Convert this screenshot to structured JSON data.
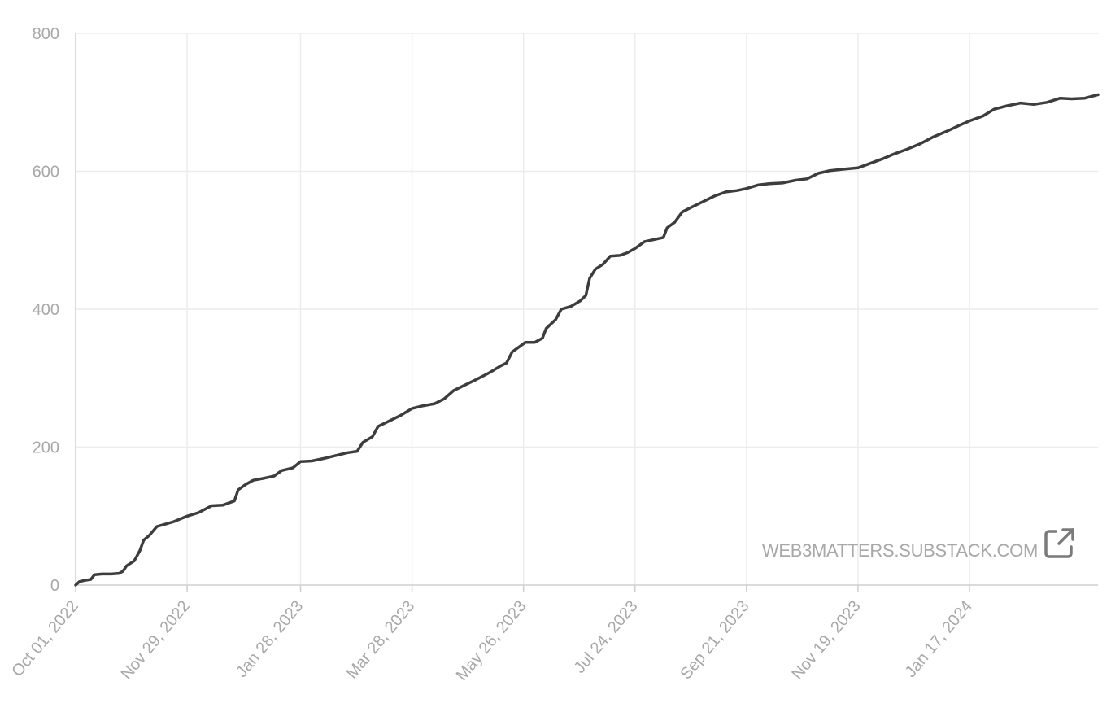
{
  "chart_data": {
    "type": "line",
    "title": "",
    "xlabel": "",
    "ylabel": "",
    "ylim": [
      0,
      800
    ],
    "y_ticks": [
      0,
      200,
      400,
      600,
      800
    ],
    "x_range": [
      "2022-10-01",
      "2024-03-25"
    ],
    "x_tick_dates": [
      "2022-10-01",
      "2022-11-29",
      "2023-01-28",
      "2023-03-28",
      "2023-05-26",
      "2023-07-24",
      "2023-09-21",
      "2023-11-19",
      "2024-01-17"
    ],
    "x_tick_labels": [
      "Oct 01, 2022",
      "Nov 29, 2022",
      "Jan 28, 2023",
      "Mar 28, 2023",
      "May 26, 2023",
      "Jul 24, 2023",
      "Sep 21, 2023",
      "Nov 19, 2023",
      "Jan 17, 2024"
    ],
    "grid": true,
    "series": [
      {
        "color": "#3d3d3d",
        "points": [
          [
            "2022-10-01",
            0
          ],
          [
            "2022-10-03",
            5
          ],
          [
            "2022-10-06",
            7
          ],
          [
            "2022-10-09",
            8
          ],
          [
            "2022-10-11",
            15
          ],
          [
            "2022-10-15",
            16
          ],
          [
            "2022-10-20",
            16
          ],
          [
            "2022-10-24",
            17
          ],
          [
            "2022-10-26",
            20
          ],
          [
            "2022-10-28",
            28
          ],
          [
            "2022-11-01",
            35
          ],
          [
            "2022-11-04",
            50
          ],
          [
            "2022-11-06",
            65
          ],
          [
            "2022-11-09",
            72
          ],
          [
            "2022-11-13",
            85
          ],
          [
            "2022-11-17",
            88
          ],
          [
            "2022-11-22",
            92
          ],
          [
            "2022-11-29",
            100
          ],
          [
            "2022-12-05",
            105
          ],
          [
            "2022-12-12",
            115
          ],
          [
            "2022-12-18",
            116
          ],
          [
            "2022-12-24",
            122
          ],
          [
            "2022-12-26",
            138
          ],
          [
            "2022-12-30",
            146
          ],
          [
            "2023-01-03",
            152
          ],
          [
            "2023-01-09",
            155
          ],
          [
            "2023-01-14",
            158
          ],
          [
            "2023-01-18",
            166
          ],
          [
            "2023-01-24",
            170
          ],
          [
            "2023-01-28",
            179
          ],
          [
            "2023-02-03",
            180
          ],
          [
            "2023-02-10",
            184
          ],
          [
            "2023-02-16",
            188
          ],
          [
            "2023-02-22",
            192
          ],
          [
            "2023-02-27",
            194
          ],
          [
            "2023-03-02",
            207
          ],
          [
            "2023-03-07",
            215
          ],
          [
            "2023-03-10",
            230
          ],
          [
            "2023-03-16",
            238
          ],
          [
            "2023-03-22",
            246
          ],
          [
            "2023-03-28",
            256
          ],
          [
            "2023-04-03",
            260
          ],
          [
            "2023-04-09",
            263
          ],
          [
            "2023-04-14",
            270
          ],
          [
            "2023-04-19",
            282
          ],
          [
            "2023-04-25",
            290
          ],
          [
            "2023-05-01",
            298
          ],
          [
            "2023-05-08",
            308
          ],
          [
            "2023-05-14",
            318
          ],
          [
            "2023-05-17",
            322
          ],
          [
            "2023-05-20",
            338
          ],
          [
            "2023-05-24",
            346
          ],
          [
            "2023-05-27",
            352
          ],
          [
            "2023-06-01",
            352
          ],
          [
            "2023-06-05",
            358
          ],
          [
            "2023-06-07",
            372
          ],
          [
            "2023-06-12",
            385
          ],
          [
            "2023-06-15",
            400
          ],
          [
            "2023-06-20",
            404
          ],
          [
            "2023-06-25",
            412
          ],
          [
            "2023-06-28",
            420
          ],
          [
            "2023-06-30",
            445
          ],
          [
            "2023-07-03",
            458
          ],
          [
            "2023-07-07",
            465
          ],
          [
            "2023-07-11",
            477
          ],
          [
            "2023-07-16",
            478
          ],
          [
            "2023-07-20",
            482
          ],
          [
            "2023-07-24",
            488
          ],
          [
            "2023-07-29",
            498
          ],
          [
            "2023-08-03",
            501
          ],
          [
            "2023-08-08",
            504
          ],
          [
            "2023-08-10",
            518
          ],
          [
            "2023-08-14",
            526
          ],
          [
            "2023-08-18",
            541
          ],
          [
            "2023-08-23",
            548
          ],
          [
            "2023-08-29",
            556
          ],
          [
            "2023-09-04",
            564
          ],
          [
            "2023-09-10",
            570
          ],
          [
            "2023-09-16",
            572
          ],
          [
            "2023-09-21",
            575
          ],
          [
            "2023-09-27",
            580
          ],
          [
            "2023-10-03",
            582
          ],
          [
            "2023-10-10",
            583
          ],
          [
            "2023-10-17",
            587
          ],
          [
            "2023-10-23",
            589
          ],
          [
            "2023-10-29",
            597
          ],
          [
            "2023-11-04",
            601
          ],
          [
            "2023-11-11",
            603
          ],
          [
            "2023-11-19",
            605
          ],
          [
            "2023-11-26",
            612
          ],
          [
            "2023-12-02",
            618
          ],
          [
            "2023-12-08",
            625
          ],
          [
            "2023-12-15",
            632
          ],
          [
            "2023-12-22",
            640
          ],
          [
            "2023-12-29",
            650
          ],
          [
            "2024-01-05",
            658
          ],
          [
            "2024-01-12",
            667
          ],
          [
            "2024-01-17",
            673
          ],
          [
            "2024-01-24",
            680
          ],
          [
            "2024-01-30",
            690
          ],
          [
            "2024-02-06",
            695
          ],
          [
            "2024-02-13",
            699
          ],
          [
            "2024-02-20",
            697
          ],
          [
            "2024-02-27",
            700
          ],
          [
            "2024-03-05",
            706
          ],
          [
            "2024-03-11",
            705
          ],
          [
            "2024-03-18",
            706
          ],
          [
            "2024-03-25",
            711
          ]
        ]
      }
    ]
  },
  "watermark": {
    "text": "WEB3MATTERS.SUBSTACK.COM",
    "icon": "external-link-icon"
  },
  "colors": {
    "line": "#3d3d3d",
    "grid": "#ececec",
    "axis": "#cfcfcf",
    "text": "#a8a8a8"
  }
}
